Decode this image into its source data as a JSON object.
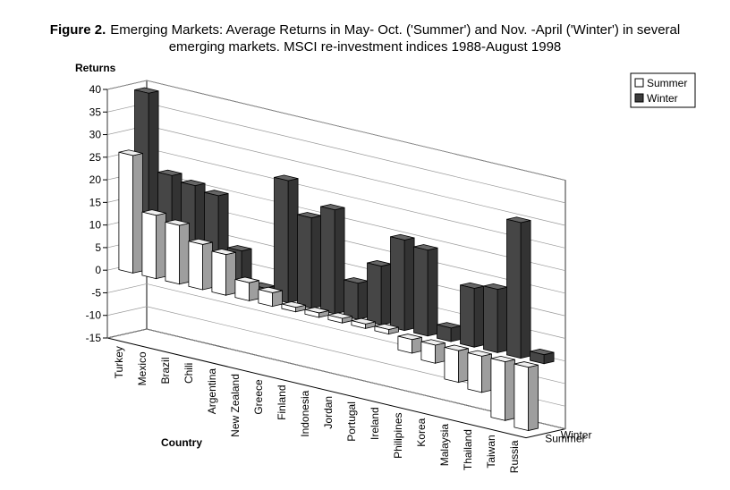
{
  "chart_data": {
    "type": "bar3d",
    "figure_label": "Figure 2.",
    "title_lines": [
      "Emerging Markets: Average Returns in May- Oct. ('Summer') and Nov. -April ('Winter') in several",
      "emerging markets. MSCI re-investment indices 1988-August 1998"
    ],
    "y_label": "Returns",
    "x_label": "Country",
    "categories": [
      "Turkey",
      "Mexico",
      "Brazil",
      "Chili",
      "Argentina",
      "New Zealand",
      "Greece",
      "Finland",
      "Indonesia",
      "Jordan",
      "Portugal",
      "Ireland",
      "Philipines",
      "Korea",
      "Malaysia",
      "Thailand",
      "Taiwan",
      "Russia"
    ],
    "series": [
      {
        "name": "Summer",
        "color": "#ffffff",
        "values": [
          26,
          14,
          13,
          10,
          9,
          4,
          3,
          1,
          1,
          1,
          1,
          1,
          -3,
          -4,
          -7,
          -8,
          -13,
          -14
        ]
      },
      {
        "name": "Winter",
        "color": "#3c3c3c",
        "values": [
          39,
          22,
          21,
          20,
          9,
          2,
          27,
          20,
          23,
          8,
          13,
          20,
          19,
          3,
          13,
          14,
          30,
          2
        ]
      }
    ],
    "ylim": [
      -15,
      40
    ],
    "yticks": [
      -15,
      -10,
      -5,
      0,
      5,
      10,
      15,
      20,
      25,
      30,
      35,
      40
    ],
    "grid": true,
    "legend": "top-right"
  }
}
